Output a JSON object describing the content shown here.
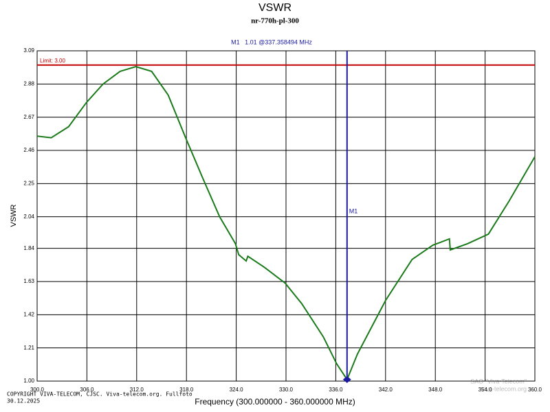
{
  "chart_data": {
    "type": "line",
    "title": "VSWR",
    "subtitle": "nr-770h-pl-300",
    "x_label": "Frequency (300.000000 - 360.000000 MHz)",
    "y_label": "VSWR",
    "x": [
      300,
      301.7,
      303.8,
      305.9,
      307.95,
      310.0,
      311.9,
      313.8,
      315.8,
      317.9,
      320.0,
      322.0,
      323.9,
      324.3,
      325.2,
      325.4,
      327.4,
      329.9,
      331.9,
      334.5,
      336.1,
      337.36,
      338.6,
      342.0,
      345.2,
      347.7,
      349.7,
      349.8,
      351.9,
      354.4,
      356.9,
      360
    ],
    "series": [
      {
        "color": "#1a7a1a",
        "values": [
          2.55,
          2.54,
          2.61,
          2.76,
          2.88,
          2.96,
          2.99,
          2.96,
          2.81,
          2.54,
          2.28,
          2.04,
          1.87,
          1.8,
          1.76,
          1.79,
          1.72,
          1.62,
          1.49,
          1.28,
          1.11,
          1.01,
          1.17,
          1.51,
          1.77,
          1.86,
          1.9,
          1.83,
          1.87,
          1.93,
          2.14,
          2.42
        ]
      }
    ],
    "xlim": [
      300,
      360
    ],
    "ylim": [
      1,
      3.09
    ],
    "xticks": [
      {
        "value": 300,
        "label": "300.0"
      },
      {
        "value": 306,
        "label": "306.0"
      },
      {
        "value": 312,
        "label": "312.0"
      },
      {
        "value": 318,
        "label": "318.0"
      },
      {
        "value": 324,
        "label": "324.0"
      },
      {
        "value": 330,
        "label": "330.0"
      },
      {
        "value": 336,
        "label": "336.0"
      },
      {
        "value": 342,
        "label": "342.0"
      },
      {
        "value": 348,
        "label": "348.0"
      },
      {
        "value": 354,
        "label": "354.0"
      },
      {
        "value": 360,
        "label": "360.0"
      }
    ],
    "yticks": [
      {
        "value": 1,
        "label": "1.00"
      },
      1.21,
      1.42,
      1.63,
      1.84,
      2.04,
      2.25,
      2.46,
      2.67,
      2.88,
      3.09
    ],
    "grid": true,
    "limit": {
      "label": "Limit: 3.00",
      "value": 3,
      "color": "#c00000"
    },
    "marker": {
      "label": "M1",
      "annotation": "M1   1.01 @337.358494 MHz",
      "x": 337.358494,
      "y": 1.01,
      "color": "#1a1aa0"
    },
    "footer": {
      "copyright": "COPYRIGHT VIVA-TELECOM, CJSC. Viva-telecom.org. Fullfoto",
      "date": "30.12.2025",
      "watermark": [
        "SAO \"Viva-Telecom\"",
        "viva-telecom.org"
      ]
    }
  }
}
